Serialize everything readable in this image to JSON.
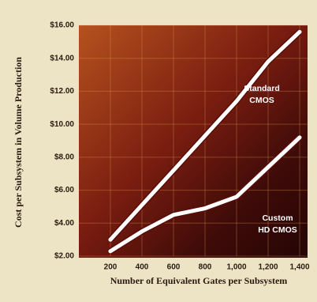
{
  "chart_data": {
    "type": "line",
    "xlabel": "Number of Equivalent Gates per Subsystem",
    "ylabel": "Cost per Subsystem in Volume Production",
    "x": [
      200,
      400,
      600,
      800,
      1000,
      1200,
      1400
    ],
    "series": [
      {
        "name": "Standard CMOS",
        "color": "#ffffff",
        "values": [
          3.0,
          5.1,
          7.2,
          9.3,
          11.4,
          13.8,
          15.6
        ]
      },
      {
        "name": "Custom HD CMOS",
        "color": "#ffffff",
        "values": [
          2.3,
          3.5,
          4.5,
          4.9,
          5.6,
          7.4,
          9.2
        ]
      }
    ],
    "annotations": [
      {
        "lines": [
          "Standard",
          "CMOS"
        ]
      },
      {
        "lines": [
          "Custom",
          "HD CMOS"
        ]
      }
    ],
    "xlim": [
      0,
      1450
    ],
    "xticks": [
      200,
      400,
      600,
      800,
      {
        "value": 1000,
        "label": "1,000"
      },
      {
        "value": 1200,
        "label": "1,200"
      },
      {
        "value": 1400,
        "label": "1,400"
      }
    ],
    "ylim": [
      2,
      16
    ],
    "yticks": [
      {
        "value": 2,
        "label": "$2.00"
      },
      {
        "value": 4,
        "label": "$4.00"
      },
      {
        "value": 6,
        "label": "$6.00"
      },
      {
        "value": 8,
        "label": "$8.00"
      },
      {
        "value": 10,
        "label": "$10.00"
      },
      {
        "value": 12,
        "label": "$12.00"
      },
      {
        "value": 14,
        "label": "$14.00"
      },
      {
        "value": 16,
        "label": "$16.00"
      }
    ],
    "grid": true
  }
}
